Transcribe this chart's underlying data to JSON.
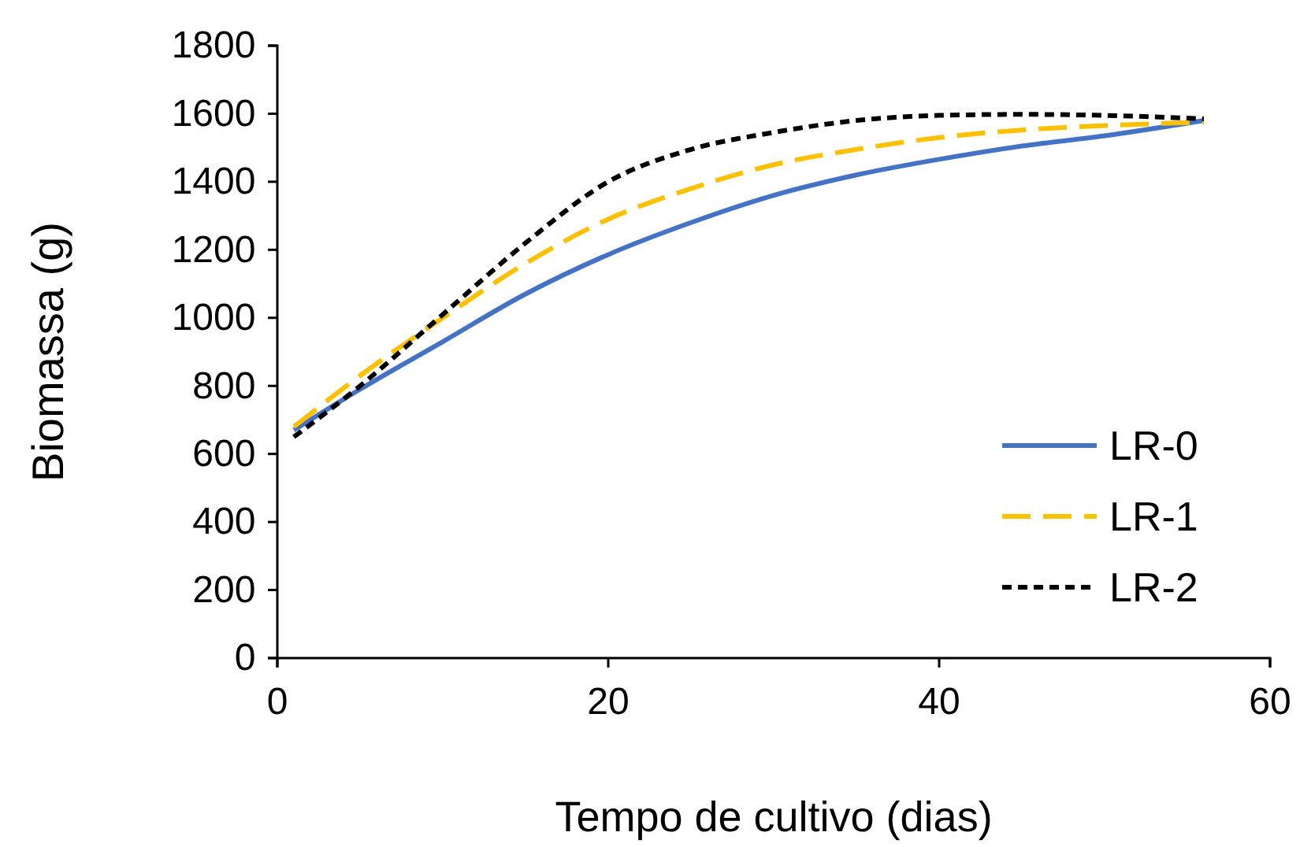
{
  "chart_data": {
    "type": "line",
    "xlabel": "Tempo de cultivo (dias)",
    "ylabel": "Biomassa (g)",
    "x": [
      1,
      5,
      10,
      15,
      20,
      25,
      30,
      35,
      40,
      45,
      50,
      56
    ],
    "series": [
      {
        "name": "LR-0",
        "color": "#4472c4",
        "line_style": "solid",
        "values": [
          670,
          790,
          930,
          1070,
          1186,
          1280,
          1360,
          1420,
          1466,
          1505,
          1535,
          1580
        ]
      },
      {
        "name": "LR-1",
        "color": "#ffc000",
        "line_style": "dashed",
        "values": [
          680,
          830,
          1000,
          1160,
          1290,
          1380,
          1450,
          1495,
          1530,
          1552,
          1565,
          1575
        ]
      },
      {
        "name": "LR-2",
        "color": "#000000",
        "line_style": "dotted",
        "values": [
          650,
          800,
          1010,
          1220,
          1400,
          1495,
          1545,
          1580,
          1595,
          1598,
          1595,
          1585
        ]
      }
    ],
    "xlim": [
      0,
      60
    ],
    "xticks": [
      0,
      20,
      40,
      60
    ],
    "ylim": [
      0,
      1800
    ],
    "yticks": [
      0,
      200,
      400,
      600,
      800,
      1000,
      1200,
      1400,
      1600,
      1800
    ],
    "grid": false,
    "legend": "bottom right",
    "marker": "none"
  }
}
